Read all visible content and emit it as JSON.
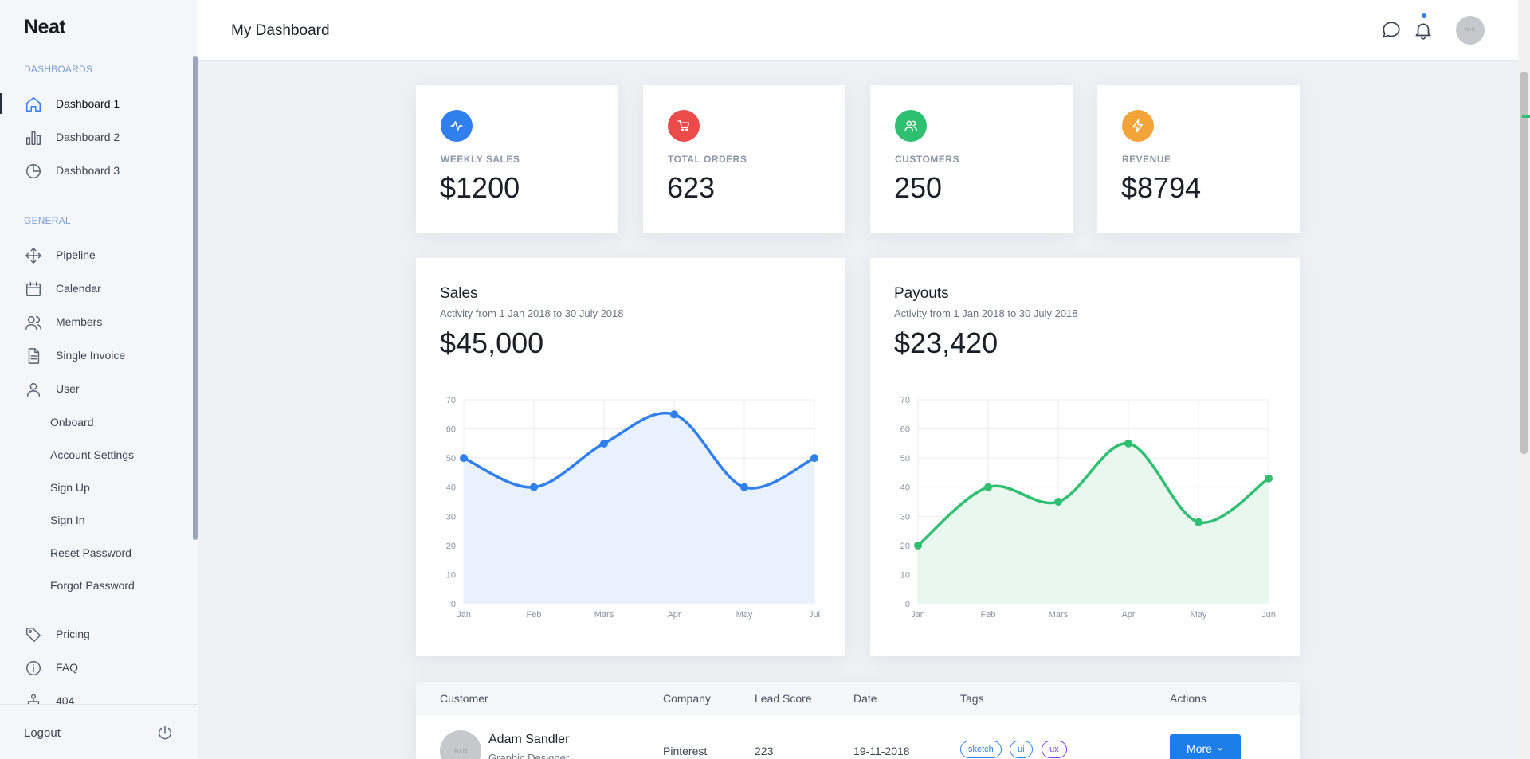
{
  "sidebar": {
    "logo": "Neat",
    "sections": {
      "dashboards": "Dashboards",
      "general": "General"
    },
    "dashboards": [
      {
        "label": "Dashboard 1",
        "icon": "home-icon",
        "active": true
      },
      {
        "label": "Dashboard 2",
        "icon": "bar-chart-icon"
      },
      {
        "label": "Dashboard 3",
        "icon": "pie-chart-icon"
      }
    ],
    "general": [
      {
        "label": "Pipeline",
        "icon": "move-icon"
      },
      {
        "label": "Calendar",
        "icon": "calendar-icon"
      },
      {
        "label": "Members",
        "icon": "users-icon"
      },
      {
        "label": "Single Invoice",
        "icon": "file-icon"
      },
      {
        "label": "User",
        "icon": "user-icon"
      }
    ],
    "user_sub": [
      "Onboard",
      "Account Settings",
      "Sign Up",
      "Sign In",
      "Reset Password",
      "Forgot Password"
    ],
    "extra": [
      {
        "label": "Pricing",
        "icon": "tag-icon"
      },
      {
        "label": "FAQ",
        "icon": "info-icon"
      },
      {
        "label": "404",
        "icon": "sitemap-icon"
      }
    ],
    "logout": "Logout"
  },
  "header": {
    "title": "My Dashboard",
    "avatar_text": "N×N"
  },
  "stats": [
    {
      "label": "WEEKLY SALES",
      "value": "$1200",
      "color": "#2f80ed",
      "icon": "activity-icon"
    },
    {
      "label": "TOTAL ORDERS",
      "value": "623",
      "color": "#eb4b4b",
      "icon": "cart-icon"
    },
    {
      "label": "CUSTOMERS",
      "value": "250",
      "color": "#2fbf71",
      "icon": "users-icon"
    },
    {
      "label": "REVENUE",
      "value": "$8794",
      "color": "#f2a43a",
      "icon": "zap-icon"
    }
  ],
  "chart_data": [
    {
      "type": "area",
      "title": "Sales",
      "subtitle": "Activity from 1 Jan 2018 to 30 July 2018",
      "total": "$45,000",
      "categories": [
        "Jan",
        "Feb",
        "Mars",
        "Apr",
        "May",
        "Jul"
      ],
      "values": [
        50,
        40,
        55,
        65,
        40,
        50
      ],
      "ylim": [
        0,
        70
      ],
      "yticks": [
        0,
        10,
        20,
        30,
        40,
        50,
        60,
        70
      ],
      "color": "#2f80ed",
      "fill": "#e8f1fd",
      "grid": true
    },
    {
      "type": "area",
      "title": "Payouts",
      "subtitle": "Activity from 1 Jan 2018 to 30 July 2018",
      "total": "$23,420",
      "categories": [
        "Jan",
        "Feb",
        "Mars",
        "Apr",
        "May",
        "Jun"
      ],
      "values": [
        20,
        40,
        35,
        55,
        28,
        43
      ],
      "ylim": [
        0,
        70
      ],
      "yticks": [
        0,
        10,
        20,
        30,
        40,
        50,
        60,
        70
      ],
      "color": "#2fbf71",
      "fill": "#e9f8ef",
      "grid": true
    }
  ],
  "table": {
    "headers": [
      "Customer",
      "Company",
      "Lead Score",
      "Date",
      "Tags",
      "Actions"
    ],
    "rows": [
      {
        "avatar_text": "N×N",
        "name": "Adam Sandler",
        "role": "Graphic Designer",
        "company": "Pinterest",
        "lead_score": "223",
        "date": "19-11-2018",
        "tags": [
          "sketch",
          "ui",
          "ux"
        ],
        "action": "More"
      }
    ]
  }
}
